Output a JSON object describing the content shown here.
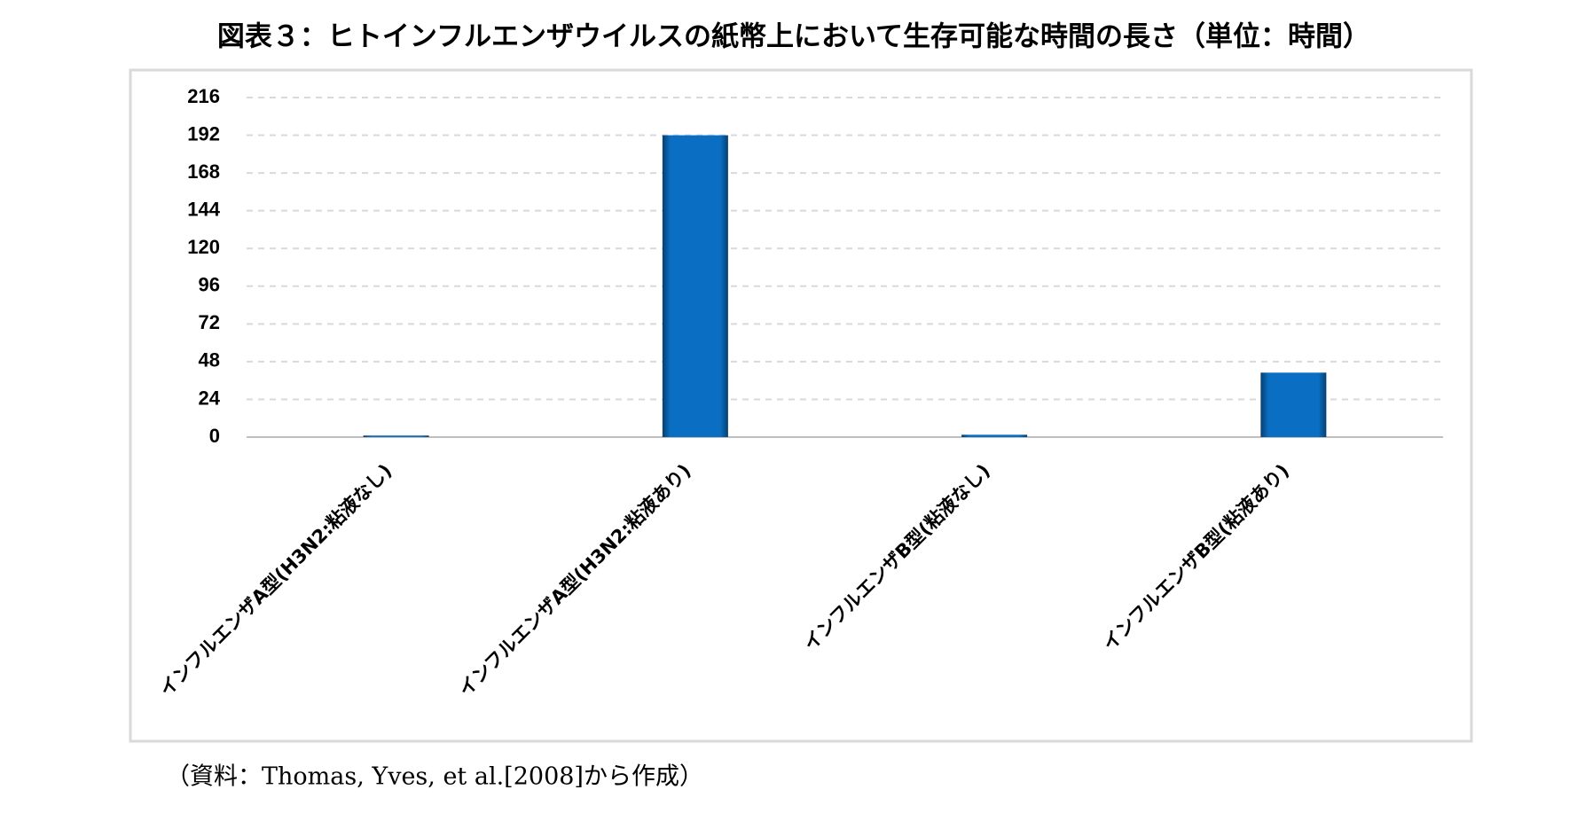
{
  "chart_data": {
    "type": "bar",
    "title": "図表３：ヒトインフルエンザウイルスの紙幣上において生存可能な時間の長さ（単位：時間）",
    "categories": [
      "インフルエンザA型(H3N2:粘液なし)",
      "インフルエンザA型(H3N2:粘液あり)",
      "インフルエンザB型(粘液なし)",
      "インフルエンザB型(粘液あり)"
    ],
    "values": [
      1,
      192,
      1.5,
      41
    ],
    "color": "#0a6fc2",
    "ylim": [
      0,
      216
    ],
    "yticks": [
      0,
      24,
      48,
      72,
      96,
      120,
      144,
      168,
      192,
      216
    ],
    "grid": true,
    "source": "（資料：Thomas, Yves, et al.[2008]から作成）"
  }
}
